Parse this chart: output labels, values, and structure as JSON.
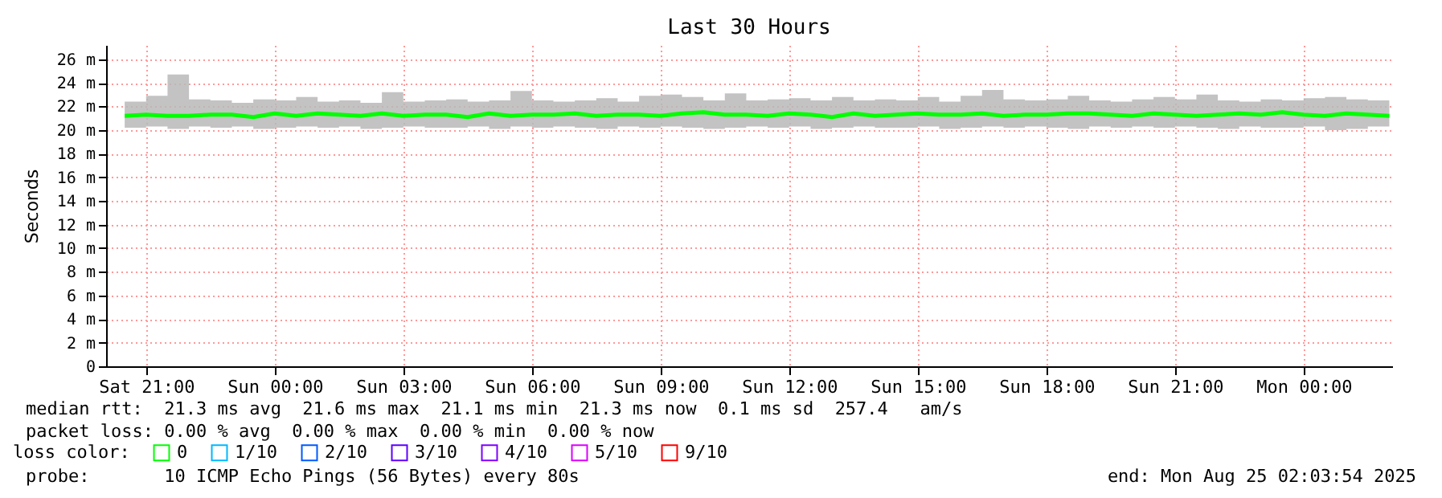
{
  "chart_data": {
    "type": "line",
    "title": "Last 30 Hours",
    "ylabel": "Seconds",
    "x": [
      "2025-08-23T20:30",
      "2025-08-23T21:00",
      "2025-08-23T21:30",
      "2025-08-23T22:00",
      "2025-08-23T22:30",
      "2025-08-23T23:00",
      "2025-08-23T23:30",
      "2025-08-24T00:00",
      "2025-08-24T00:30",
      "2025-08-24T01:00",
      "2025-08-24T01:30",
      "2025-08-24T02:00",
      "2025-08-24T02:30",
      "2025-08-24T03:00",
      "2025-08-24T03:30",
      "2025-08-24T04:00",
      "2025-08-24T04:30",
      "2025-08-24T05:00",
      "2025-08-24T05:30",
      "2025-08-24T06:00",
      "2025-08-24T06:30",
      "2025-08-24T07:00",
      "2025-08-24T07:30",
      "2025-08-24T08:00",
      "2025-08-24T08:30",
      "2025-08-24T09:00",
      "2025-08-24T09:30",
      "2025-08-24T10:00",
      "2025-08-24T10:30",
      "2025-08-24T11:00",
      "2025-08-24T11:30",
      "2025-08-24T12:00",
      "2025-08-24T12:30",
      "2025-08-24T13:00",
      "2025-08-24T13:30",
      "2025-08-24T14:00",
      "2025-08-24T14:30",
      "2025-08-24T15:00",
      "2025-08-24T15:30",
      "2025-08-24T16:00",
      "2025-08-24T16:30",
      "2025-08-24T17:00",
      "2025-08-24T17:30",
      "2025-08-24T18:00",
      "2025-08-24T18:30",
      "2025-08-24T19:00",
      "2025-08-24T19:30",
      "2025-08-24T20:00",
      "2025-08-24T20:30",
      "2025-08-24T21:00",
      "2025-08-24T21:30",
      "2025-08-24T22:00",
      "2025-08-24T22:30",
      "2025-08-24T23:00",
      "2025-08-24T23:30",
      "2025-08-25T00:00",
      "2025-08-25T00:30",
      "2025-08-25T01:00",
      "2025-08-25T01:30",
      "2025-08-25T02:00"
    ],
    "series": [
      {
        "name": "0",
        "color": "#00ff00",
        "values": [
          21.2,
          21.3,
          21.2,
          21.2,
          21.3,
          21.3,
          21.1,
          21.4,
          21.2,
          21.4,
          21.3,
          21.2,
          21.4,
          21.2,
          21.3,
          21.3,
          21.1,
          21.4,
          21.2,
          21.3,
          21.3,
          21.4,
          21.2,
          21.3,
          21.3,
          21.2,
          21.4,
          21.5,
          21.3,
          21.3,
          21.2,
          21.4,
          21.3,
          21.1,
          21.4,
          21.2,
          21.3,
          21.4,
          21.3,
          21.3,
          21.4,
          21.2,
          21.3,
          21.3,
          21.4,
          21.4,
          21.3,
          21.2,
          21.4,
          21.3,
          21.2,
          21.3,
          21.4,
          21.3,
          21.5,
          21.3,
          21.2,
          21.4,
          21.3,
          21.2
        ],
        "lower": [
          20.2,
          20.3,
          20.1,
          20.3,
          20.2,
          20.3,
          20.1,
          20.2,
          20.3,
          20.2,
          20.3,
          20.1,
          20.2,
          20.3,
          20.2,
          20.2,
          20.3,
          20.1,
          20.3,
          20.2,
          20.3,
          20.2,
          20.1,
          20.3,
          20.2,
          20.3,
          20.2,
          20.1,
          20.2,
          20.3,
          20.2,
          20.3,
          20.1,
          20.2,
          20.3,
          20.2,
          20.2,
          20.3,
          20.1,
          20.2,
          20.3,
          20.2,
          20.3,
          20.2,
          20.1,
          20.3,
          20.2,
          20.3,
          20.2,
          20.3,
          20.2,
          20.1,
          20.3,
          20.2,
          20.2,
          20.3,
          20.0,
          20.1,
          20.3,
          20.2
        ],
        "upper": [
          22.4,
          22.9,
          24.7,
          22.6,
          22.5,
          22.3,
          22.6,
          22.5,
          22.8,
          22.4,
          22.5,
          22.3,
          23.2,
          22.4,
          22.5,
          22.6,
          22.4,
          22.5,
          23.3,
          22.5,
          22.4,
          22.5,
          22.7,
          22.4,
          22.9,
          23.0,
          22.8,
          22.5,
          23.1,
          22.5,
          22.6,
          22.7,
          22.5,
          22.8,
          22.5,
          22.6,
          22.5,
          22.8,
          22.4,
          22.9,
          23.4,
          22.6,
          22.5,
          22.6,
          22.9,
          22.5,
          22.4,
          22.6,
          22.8,
          22.6,
          23.0,
          22.5,
          22.4,
          22.6,
          22.5,
          22.7,
          22.8,
          22.6,
          22.5,
          22.4
        ]
      },
      {
        "name": "1/10",
        "color": "#00b8ff",
        "values": [
          null,
          null,
          null,
          null,
          null,
          null,
          null,
          null,
          null,
          null,
          null,
          null,
          null,
          null,
          null,
          null,
          null,
          null,
          null,
          null,
          null,
          null,
          null,
          null,
          null,
          null,
          null,
          null,
          null,
          null,
          null,
          null,
          null,
          null,
          null,
          null,
          null,
          null,
          null,
          null,
          null,
          null,
          null,
          null,
          null,
          null,
          null,
          null,
          null,
          null,
          null,
          null,
          null,
          null,
          null,
          null,
          null,
          null,
          null,
          null
        ]
      },
      {
        "name": "2/10",
        "color": "#0059ff",
        "values": [
          null,
          null,
          null,
          null,
          null,
          null,
          null,
          null,
          null,
          null,
          null,
          null,
          null,
          null,
          null,
          null,
          null,
          null,
          null,
          null,
          null,
          null,
          null,
          null,
          null,
          null,
          null,
          null,
          null,
          null,
          null,
          null,
          null,
          null,
          null,
          null,
          null,
          null,
          null,
          null,
          null,
          null,
          null,
          null,
          null,
          null,
          null,
          null,
          null,
          null,
          null,
          null,
          null,
          null,
          null,
          null,
          null,
          null,
          null,
          null
        ]
      },
      {
        "name": "3/10",
        "color": "#5e00ff",
        "values": [
          null,
          null,
          null,
          null,
          null,
          null,
          null,
          null,
          null,
          null,
          null,
          null,
          null,
          null,
          null,
          null,
          null,
          null,
          null,
          null,
          null,
          null,
          null,
          null,
          null,
          null,
          null,
          null,
          null,
          null,
          null,
          null,
          null,
          null,
          null,
          null,
          null,
          null,
          null,
          null,
          null,
          null,
          null,
          null,
          null,
          null,
          null,
          null,
          null,
          null,
          null,
          null,
          null,
          null,
          null,
          null,
          null,
          null,
          null,
          null
        ]
      },
      {
        "name": "4/10",
        "color": "#7e00ff",
        "values": [
          null,
          null,
          null,
          null,
          null,
          null,
          null,
          null,
          null,
          null,
          null,
          null,
          null,
          null,
          null,
          null,
          null,
          null,
          null,
          null,
          null,
          null,
          null,
          null,
          null,
          null,
          null,
          null,
          null,
          null,
          null,
          null,
          null,
          null,
          null,
          null,
          null,
          null,
          null,
          null,
          null,
          null,
          null,
          null,
          null,
          null,
          null,
          null,
          null,
          null,
          null,
          null,
          null,
          null,
          null,
          null,
          null,
          null,
          null,
          null
        ]
      },
      {
        "name": "5/10",
        "color": "#dd00ff",
        "values": [
          null,
          null,
          null,
          null,
          null,
          null,
          null,
          null,
          null,
          null,
          null,
          null,
          null,
          null,
          null,
          null,
          null,
          null,
          null,
          null,
          null,
          null,
          null,
          null,
          null,
          null,
          null,
          null,
          null,
          null,
          null,
          null,
          null,
          null,
          null,
          null,
          null,
          null,
          null,
          null,
          null,
          null,
          null,
          null,
          null,
          null,
          null,
          null,
          null,
          null,
          null,
          null,
          null,
          null,
          null,
          null,
          null,
          null,
          null,
          null
        ]
      },
      {
        "name": "9/10",
        "color": "#ff0000",
        "values": [
          null,
          null,
          null,
          null,
          null,
          null,
          null,
          null,
          null,
          null,
          null,
          null,
          null,
          null,
          null,
          null,
          null,
          null,
          null,
          null,
          null,
          null,
          null,
          null,
          null,
          null,
          null,
          null,
          null,
          null,
          null,
          null,
          null,
          null,
          null,
          null,
          null,
          null,
          null,
          null,
          null,
          null,
          null,
          null,
          null,
          null,
          null,
          null,
          null,
          null,
          null,
          null,
          null,
          null,
          null,
          null,
          null,
          null,
          null,
          null
        ]
      }
    ],
    "legend_title": "loss color:",
    "legend": "bottom left",
    "xlim": [
      "2025-08-23T20:04",
      "2025-08-25T02:04"
    ],
    "xticks": [
      {
        "value": "2025-08-23T21:00",
        "label": "Sat 21:00"
      },
      {
        "value": "2025-08-24T00:00",
        "label": "Sun 00:00"
      },
      {
        "value": "2025-08-24T03:00",
        "label": "Sun 03:00"
      },
      {
        "value": "2025-08-24T06:00",
        "label": "Sun 06:00"
      },
      {
        "value": "2025-08-24T09:00",
        "label": "Sun 09:00"
      },
      {
        "value": "2025-08-24T12:00",
        "label": "Sun 12:00"
      },
      {
        "value": "2025-08-24T15:00",
        "label": "Sun 15:00"
      },
      {
        "value": "2025-08-24T18:00",
        "label": "Sun 18:00"
      },
      {
        "value": "2025-08-24T21:00",
        "label": "Sun 21:00"
      },
      {
        "value": "2025-08-25T00:00",
        "label": "Mon 00:00"
      }
    ],
    "ylim": [
      0,
      27.2
    ],
    "yticks": [
      0,
      {
        "value": 2,
        "label": "2 m"
      },
      {
        "value": 4,
        "label": "4 m"
      },
      {
        "value": 6,
        "label": "6 m"
      },
      {
        "value": 8,
        "label": "8 m"
      },
      {
        "value": 10,
        "label": "10 m"
      },
      {
        "value": 12,
        "label": "12 m"
      },
      {
        "value": 14,
        "label": "14 m"
      },
      {
        "value": 16,
        "label": "16 m"
      },
      {
        "value": 18,
        "label": "18 m"
      },
      {
        "value": 20,
        "label": "20 m"
      },
      {
        "value": 22,
        "label": "22 m"
      },
      {
        "value": 24,
        "label": "24 m"
      },
      {
        "value": 26,
        "label": "26 m"
      }
    ],
    "grid": true,
    "marker": "none",
    "line_style": "solid",
    "annotations": [
      "median rtt:  21.3 ms avg  21.6 ms max  21.1 ms min  21.3 ms now  0.1 ms sd  257.4   am/s",
      "packet loss: 0.00 % avg  0.00 % max  0.00 % min  0.00 % now",
      "probe:       10 ICMP Echo Pings (56 Bytes) every 80s",
      "end: Mon Aug 25 02:03:54 2025"
    ]
  }
}
